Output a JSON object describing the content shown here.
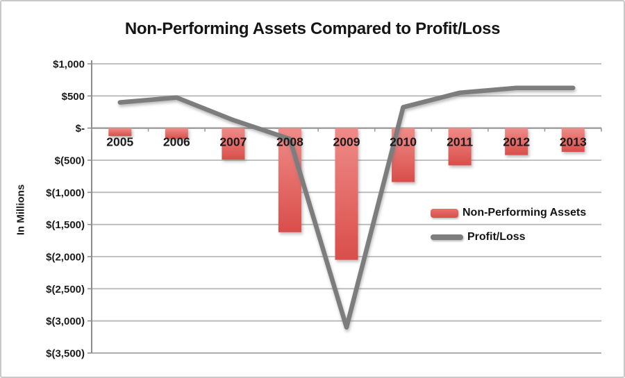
{
  "chart_data": {
    "type": "combo",
    "title": "Non-Performing Assets Compared to Profit/Loss",
    "ylabel": "In Millions",
    "xlabel": "",
    "categories": [
      "2005",
      "2006",
      "2007",
      "2008",
      "2009",
      "2010",
      "2011",
      "2012",
      "2013"
    ],
    "series": [
      {
        "name": "Non-Performing Assets",
        "type": "bar",
        "color_top": "#ef8b88",
        "color_bottom": "#d94e4a",
        "values": [
          -125,
          -170,
          -490,
          -1620,
          -2050,
          -840,
          -580,
          -420,
          -370
        ]
      },
      {
        "name": "Profit/Loss",
        "type": "line",
        "color": "#7d7d7d",
        "values": [
          400,
          475,
          125,
          -170,
          -3100,
          325,
          550,
          625,
          625
        ]
      }
    ],
    "ylim": [
      -3500,
      1000
    ],
    "ytick_step": 500,
    "ytick_labels": [
      "$1,000",
      "$500",
      "$-",
      "$(500)",
      "$(1,000)",
      "$(1,500)",
      "$(2,000)",
      "$(2,500)",
      "$(3,000)",
      "$(3,500)"
    ],
    "grid": true,
    "legend_position": "center-right",
    "colors": {
      "gridline": "#b8b8b8",
      "zero_axis": "#9a9a9a",
      "bottom_gridline": "#a3a3a3",
      "value_axis": "#8c8c8c",
      "label_text": "#1b1b1b"
    }
  }
}
